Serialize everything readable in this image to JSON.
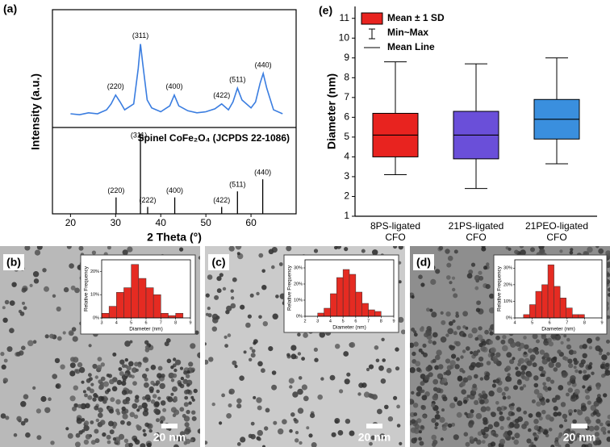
{
  "chart_data": [
    {
      "type": "line",
      "panel_label": "(a)",
      "x_label": "2 Theta (°)",
      "y_label": "Intensity (a.u.)",
      "xlim": [
        16,
        70
      ],
      "xticks": [
        20,
        30,
        40,
        50,
        60
      ],
      "ylim": [
        0,
        120
      ],
      "color": "#3a7de0",
      "x": [
        20,
        22,
        24,
        26,
        28,
        29,
        30,
        31,
        32,
        34,
        35,
        35.5,
        36,
        37,
        38,
        40,
        42,
        43,
        44,
        46,
        48,
        50,
        52,
        53.5,
        55,
        56,
        57,
        58,
        60,
        61,
        62,
        62.7,
        63.5,
        65,
        67
      ],
      "values": [
        14,
        13,
        15,
        14,
        18,
        24,
        33,
        26,
        18,
        24,
        60,
        85,
        65,
        28,
        20,
        16,
        22,
        33,
        22,
        17,
        15,
        16,
        19,
        24,
        18,
        26,
        40,
        28,
        20,
        26,
        45,
        55,
        40,
        18,
        14
      ],
      "peak_labels": [
        {
          "x": 30,
          "label": "(220)"
        },
        {
          "x": 35.5,
          "label": "(311)"
        },
        {
          "x": 43,
          "label": "(400)"
        },
        {
          "x": 53.5,
          "label": "(422)"
        },
        {
          "x": 57,
          "label": "(511)"
        },
        {
          "x": 62.7,
          "label": "(440)"
        }
      ],
      "reference": {
        "title": "Spinel CoFe₂O₄ (JCPDS 22-1086)",
        "ylim": [
          0,
          100
        ],
        "x": [
          30.1,
          35.5,
          37.1,
          43.1,
          53.5,
          57.0,
          62.6
        ],
        "values": [
          19,
          93,
          8,
          19,
          8,
          26,
          40
        ],
        "labels": [
          "(220)",
          "(311)",
          "(222)",
          "(400)",
          "(422)",
          "(511)",
          "(440)"
        ]
      }
    },
    {
      "type": "box",
      "panel_label": "(e)",
      "y_label": "Diameter (nm)",
      "ylim": [
        1,
        11.6
      ],
      "yticks": [
        1,
        2,
        3,
        4,
        5,
        6,
        7,
        8,
        9,
        10,
        11
      ],
      "legend": [
        "Mean ± 1 SD",
        "Min~Max",
        "Mean Line"
      ],
      "categories": [
        [
          "8PS-ligated",
          "CFO"
        ],
        [
          "21PS-ligated",
          "CFO"
        ],
        [
          "21PEO-ligated",
          "CFO"
        ]
      ],
      "colors": [
        "#e8231f",
        "#6a4fd9",
        "#3a8fde"
      ],
      "boxes": [
        {
          "min": 3.1,
          "lower": 4.0,
          "mean": 5.1,
          "upper": 6.2,
          "max": 8.8
        },
        {
          "min": 2.4,
          "lower": 3.9,
          "mean": 5.1,
          "upper": 6.3,
          "max": 8.7
        },
        {
          "min": 3.65,
          "lower": 4.9,
          "mean": 5.9,
          "upper": 6.9,
          "max": 9.0
        }
      ]
    },
    {
      "type": "histogram",
      "panel_label": "(b)",
      "scale_bar": "20 nm",
      "x_label": "Diameter (nm)",
      "y_label": "Relative Frequency",
      "color": "#e52b22",
      "xlim": [
        3,
        9
      ],
      "xticks": [
        3,
        4,
        5,
        6,
        7,
        8,
        9
      ],
      "ylim": [
        0,
        25
      ],
      "yticks": [
        {
          "value": 0,
          "label": "0%"
        },
        {
          "value": 10,
          "label": "10%"
        },
        {
          "value": 20,
          "label": "20%"
        }
      ],
      "bins": [
        3,
        3.5,
        4,
        4.5,
        5,
        5.5,
        6,
        6.5,
        7,
        7.5,
        8,
        8.5
      ],
      "values": [
        2,
        5,
        11,
        13,
        23,
        17,
        13,
        10,
        2,
        1,
        2
      ]
    },
    {
      "type": "histogram",
      "panel_label": "(c)",
      "scale_bar": "20 nm",
      "x_label": "Diameter (nm)",
      "y_label": "Relative Frequency",
      "color": "#e52b22",
      "xlim": [
        2,
        9
      ],
      "xticks": [
        2,
        3,
        4,
        5,
        6,
        7,
        8,
        9
      ],
      "ylim": [
        0,
        35
      ],
      "yticks": [
        {
          "value": 0,
          "label": "0%"
        },
        {
          "value": 10,
          "label": "10%"
        },
        {
          "value": 20,
          "label": "20%"
        },
        {
          "value": 30,
          "label": "30%"
        }
      ],
      "bins": [
        3,
        3.5,
        4,
        4.5,
        5,
        5.5,
        6,
        6.5,
        7,
        7.5,
        8
      ],
      "values": [
        2,
        5,
        14,
        24,
        29,
        26,
        15,
        8,
        4,
        3
      ]
    },
    {
      "type": "histogram",
      "panel_label": "(d)",
      "scale_bar": "20 nm",
      "x_label": "Diameter (nm)",
      "y_label": "Relative Frequency",
      "color": "#e52b22",
      "xlim": [
        4,
        9
      ],
      "xticks": [
        4,
        5,
        6,
        7,
        8,
        9
      ],
      "ylim": [
        0,
        35
      ],
      "yticks": [
        {
          "value": 0,
          "label": "0%"
        },
        {
          "value": 10,
          "label": "10%"
        },
        {
          "value": 20,
          "label": "20%"
        },
        {
          "value": 30,
          "label": "30%"
        }
      ],
      "bins": [
        4.5,
        4.85,
        5.2,
        5.55,
        5.9,
        6.25,
        6.6,
        6.95,
        7.3,
        7.65,
        8.0
      ],
      "values": [
        2,
        8,
        16,
        20,
        32,
        19,
        12,
        6,
        2,
        2
      ]
    }
  ]
}
